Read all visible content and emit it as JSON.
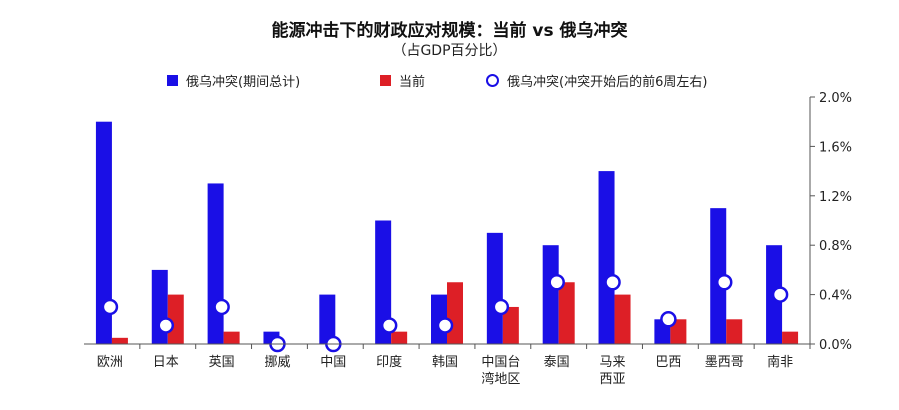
{
  "chart_data": {
    "type": "bar",
    "title": "能源冲击下的财政应对规模：当前 vs 俄乌冲突",
    "subtitle": "（占GDP百分比）",
    "categories": [
      [
        "欧洲"
      ],
      [
        "日本"
      ],
      [
        "英国"
      ],
      [
        "挪威"
      ],
      [
        "中国"
      ],
      [
        "印度"
      ],
      [
        "韩国"
      ],
      [
        "中国台",
        "湾地区"
      ],
      [
        "泰国"
      ],
      [
        "马来",
        "西亚"
      ],
      [
        "巴西"
      ],
      [
        "墨西哥"
      ],
      [
        "南非"
      ]
    ],
    "series": [
      {
        "name": "俄乌冲突(期间总计)",
        "kind": "bar",
        "color": "#1a0fe6",
        "values": [
          1.8,
          0.6,
          1.3,
          0.1,
          0.4,
          1.0,
          0.4,
          0.9,
          0.8,
          1.4,
          0.2,
          1.1,
          0.8
        ]
      },
      {
        "name": "当前",
        "kind": "bar",
        "color": "#dd1f26",
        "values": [
          0.05,
          0.4,
          0.1,
          0.0,
          0.0,
          0.1,
          0.5,
          0.3,
          0.5,
          0.4,
          0.2,
          0.2,
          0.1
        ]
      },
      {
        "name": "俄乌冲突(冲突开始后的前6周左右)",
        "kind": "marker",
        "color": "#1a0fe6",
        "values": [
          0.3,
          0.15,
          0.3,
          0.0,
          0.0,
          0.15,
          0.15,
          0.3,
          0.5,
          0.5,
          0.2,
          0.5,
          0.4
        ]
      }
    ],
    "y_axis": {
      "position": "right",
      "ylim": [
        0,
        2.0
      ],
      "ticks": [
        0,
        0.4,
        0.8,
        1.2,
        1.6,
        2.0
      ],
      "tick_labels": [
        "0.0%",
        "0.4%",
        "0.8%",
        "1.2%",
        "1.6%",
        "2.0%"
      ]
    },
    "legend": {
      "placement": "top"
    },
    "grid": false
  }
}
